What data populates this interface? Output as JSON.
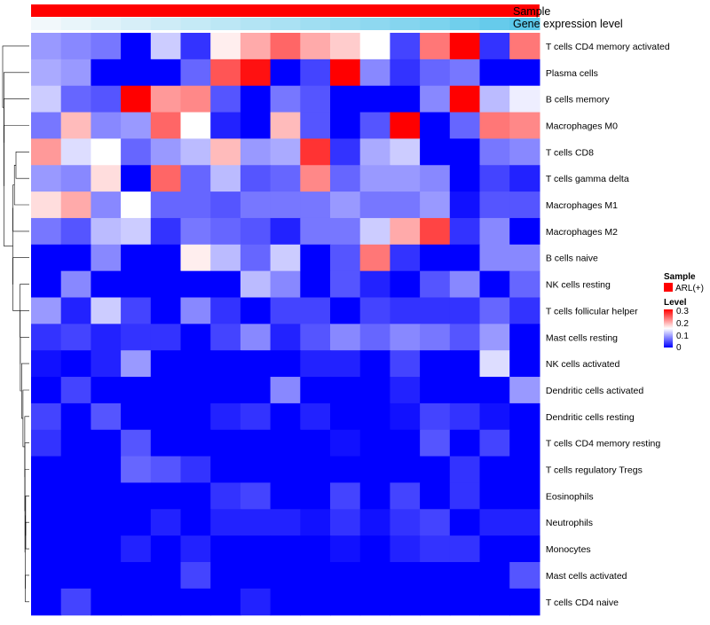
{
  "chart_data": {
    "type": "heatmap",
    "title": "",
    "annotation_labels": {
      "sample": "Sample",
      "gene": "Gene expression level"
    },
    "legends": {
      "sample_title": "Sample",
      "sample_entry": "ARL(+)",
      "level_title": "Level",
      "level_ticks": [
        "0.3",
        "0.2",
        "0.1",
        "0"
      ]
    },
    "colors": {
      "low": "#0000ff",
      "mid": "#ffffff",
      "high": "#ff0000",
      "sample": "#ff0000",
      "gene_low": "#f2f8fb",
      "gene_high": "#5bc8ea"
    },
    "value_range": [
      0,
      0.3
    ],
    "rows": [
      "T cells CD4 memory activated",
      "Plasma cells",
      "B cells memory",
      "Macrophages M0",
      "T cells CD8",
      "T cells gamma delta",
      "Macrophages M1",
      "Macrophages M2",
      "B cells naive",
      "NK cells resting",
      "T cells follicular helper",
      "Mast cells resting",
      "NK cells activated",
      "Dendritic cells activated",
      "Dendritic cells resting",
      "T cells CD4 memory resting",
      "T cells regulatory  Tregs",
      "Eosinophils",
      "Neutrophils",
      "Monocytes",
      "Mast cells activated",
      "T cells CD4 naive"
    ],
    "values": [
      [
        0.09,
        0.08,
        0.07,
        0.0,
        0.12,
        0.03,
        0.16,
        0.2,
        0.24,
        0.2,
        0.18,
        0.15,
        0.04,
        0.23,
        0.3,
        0.03,
        0.23
      ],
      [
        0.1,
        0.09,
        0.0,
        0.0,
        0.0,
        0.06,
        0.25,
        0.29,
        0.0,
        0.04,
        0.3,
        0.08,
        0.03,
        0.06,
        0.07,
        0.0,
        0.0
      ],
      [
        0.12,
        0.06,
        0.05,
        0.3,
        0.21,
        0.22,
        0.05,
        0.0,
        0.07,
        0.05,
        0.0,
        0.0,
        0.0,
        0.08,
        0.3,
        0.11,
        0.14
      ],
      [
        0.07,
        0.19,
        0.08,
        0.09,
        0.24,
        0.15,
        0.02,
        0.0,
        0.19,
        0.05,
        0.0,
        0.05,
        0.3,
        0.0,
        0.06,
        0.23,
        0.22
      ],
      [
        0.21,
        0.13,
        0.15,
        0.06,
        0.09,
        0.11,
        0.19,
        0.09,
        0.1,
        0.27,
        0.03,
        0.1,
        0.12,
        0.0,
        0.0,
        0.07,
        0.08
      ],
      [
        0.09,
        0.08,
        0.17,
        0.0,
        0.24,
        0.06,
        0.11,
        0.05,
        0.06,
        0.22,
        0.06,
        0.09,
        0.09,
        0.08,
        0.0,
        0.04,
        0.02
      ],
      [
        0.17,
        0.2,
        0.08,
        0.15,
        0.06,
        0.06,
        0.05,
        0.07,
        0.07,
        0.07,
        0.09,
        0.07,
        0.07,
        0.09,
        0.01,
        0.05,
        0.05
      ],
      [
        0.07,
        0.05,
        0.11,
        0.12,
        0.03,
        0.07,
        0.06,
        0.05,
        0.02,
        0.07,
        0.07,
        0.12,
        0.2,
        0.26,
        0.03,
        0.08,
        0.0
      ],
      [
        0.0,
        0.0,
        0.08,
        0.0,
        0.0,
        0.16,
        0.11,
        0.06,
        0.12,
        0.0,
        0.05,
        0.23,
        0.03,
        0.0,
        0.0,
        0.08,
        0.08
      ],
      [
        0.0,
        0.08,
        0.0,
        0.0,
        0.0,
        0.0,
        0.0,
        0.11,
        0.08,
        0.0,
        0.05,
        0.02,
        0.0,
        0.05,
        0.08,
        0.0,
        0.06
      ],
      [
        0.09,
        0.02,
        0.12,
        0.04,
        0.0,
        0.08,
        0.03,
        0.0,
        0.04,
        0.04,
        0.0,
        0.04,
        0.03,
        0.03,
        0.03,
        0.06,
        0.03
      ],
      [
        0.03,
        0.04,
        0.02,
        0.03,
        0.03,
        0.0,
        0.04,
        0.08,
        0.02,
        0.05,
        0.08,
        0.06,
        0.08,
        0.07,
        0.05,
        0.09,
        0.0
      ],
      [
        0.01,
        0.0,
        0.02,
        0.09,
        0.0,
        0.0,
        0.0,
        0.0,
        0.0,
        0.02,
        0.02,
        0.0,
        0.04,
        0.0,
        0.0,
        0.13,
        0.0
      ],
      [
        0.0,
        0.04,
        0.0,
        0.0,
        0.0,
        0.0,
        0.0,
        0.0,
        0.08,
        0.0,
        0.0,
        0.0,
        0.02,
        0.0,
        0.0,
        0.0,
        0.09
      ],
      [
        0.04,
        0.0,
        0.05,
        0.0,
        0.0,
        0.0,
        0.02,
        0.03,
        0.0,
        0.02,
        0.0,
        0.0,
        0.01,
        0.04,
        0.03,
        0.01,
        0.0
      ],
      [
        0.03,
        0.0,
        0.0,
        0.05,
        0.0,
        0.0,
        0.0,
        0.0,
        0.0,
        0.0,
        0.01,
        0.0,
        0.0,
        0.05,
        0.0,
        0.04,
        0.0
      ],
      [
        0.0,
        0.0,
        0.0,
        0.06,
        0.05,
        0.03,
        0.0,
        0.0,
        0.0,
        0.0,
        0.0,
        0.0,
        0.0,
        0.0,
        0.03,
        0.0,
        0.0
      ],
      [
        0.0,
        0.0,
        0.0,
        0.0,
        0.0,
        0.0,
        0.03,
        0.04,
        0.0,
        0.0,
        0.04,
        0.0,
        0.04,
        0.0,
        0.03,
        0.0,
        0.0
      ],
      [
        0.0,
        0.0,
        0.0,
        0.0,
        0.02,
        0.0,
        0.02,
        0.02,
        0.02,
        0.01,
        0.03,
        0.01,
        0.03,
        0.04,
        0.0,
        0.02,
        0.02
      ],
      [
        0.0,
        0.0,
        0.0,
        0.02,
        0.0,
        0.02,
        0.0,
        0.0,
        0.0,
        0.0,
        0.01,
        0.0,
        0.02,
        0.03,
        0.03,
        0.0,
        0.0
      ],
      [
        0.0,
        0.0,
        0.0,
        0.0,
        0.0,
        0.04,
        0.0,
        0.0,
        0.0,
        0.0,
        0.0,
        0.0,
        0.0,
        0.0,
        0.0,
        0.0,
        0.05
      ],
      [
        0.0,
        0.04,
        0.0,
        0.0,
        0.0,
        0.0,
        0.0,
        0.02,
        0.0,
        0.0,
        0.0,
        0.0,
        0.0,
        0.0,
        0.0,
        0.0,
        0.0
      ]
    ],
    "gene_expression": [
      0.0,
      0.06,
      0.12,
      0.18,
      0.24,
      0.3,
      0.36,
      0.42,
      0.48,
      0.54,
      0.6,
      0.66,
      0.72,
      0.78,
      0.86,
      0.93,
      1.0
    ]
  }
}
